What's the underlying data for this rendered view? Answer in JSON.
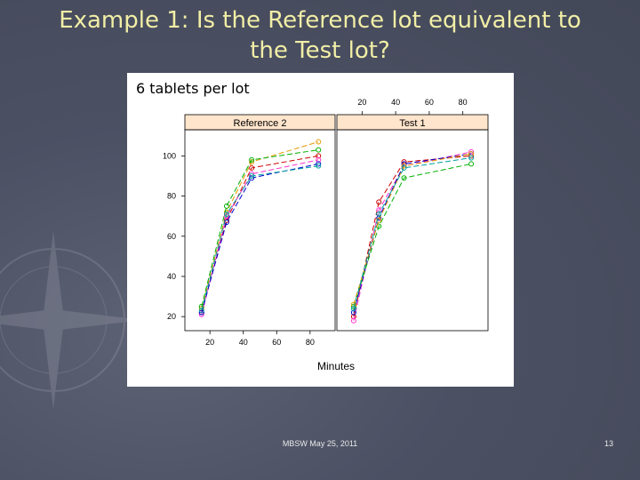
{
  "slide": {
    "title_line1": "Example 1: Is the Reference lot equivalent to",
    "title_line2": "the Test lot?",
    "caption": "6 tablets per lot",
    "footer": "MBSW May 25, 2011",
    "page_number": "13"
  },
  "chart_data": {
    "type": "line",
    "xlabel": "Minutes",
    "ylabel": "",
    "xlim": [
      5,
      95
    ],
    "ylim": [
      13,
      113
    ],
    "x_ticks": [
      20,
      40,
      60,
      80
    ],
    "y_ticks": [
      20,
      40,
      60,
      80,
      100
    ],
    "panels": [
      {
        "label": "Reference 2",
        "x": [
          15,
          30,
          45,
          85
        ],
        "series": [
          {
            "color": "#e69900",
            "values": [
              24,
              72,
              97,
              107
            ]
          },
          {
            "color": "#00b000",
            "values": [
              25,
              75,
              98,
              103
            ]
          },
          {
            "color": "#cc0000",
            "values": [
              22,
              68,
              94,
              100
            ]
          },
          {
            "color": "#ff33cc",
            "values": [
              21,
              70,
              91,
              98
            ]
          },
          {
            "color": "#0000cc",
            "values": [
              22,
              67,
              89,
              96
            ]
          },
          {
            "color": "#00a0a0",
            "values": [
              23,
              71,
              90,
              95
            ]
          }
        ]
      },
      {
        "label": "Test 1",
        "x": [
          15,
          30,
          45,
          85
        ],
        "series": [
          {
            "color": "#cc0000",
            "values": [
              20,
              77,
              97,
              100
            ]
          },
          {
            "color": "#ff33cc",
            "values": [
              18,
              73,
              95,
              102
            ]
          },
          {
            "color": "#0000cc",
            "values": [
              22,
              69,
              96,
              101
            ]
          },
          {
            "color": "#00b000",
            "values": [
              25,
              65,
              89,
              96
            ]
          },
          {
            "color": "#e69900",
            "values": [
              26,
              68,
              95,
              101
            ]
          },
          {
            "color": "#00a0a0",
            "values": [
              24,
              71,
              94,
              99
            ]
          }
        ]
      }
    ]
  }
}
